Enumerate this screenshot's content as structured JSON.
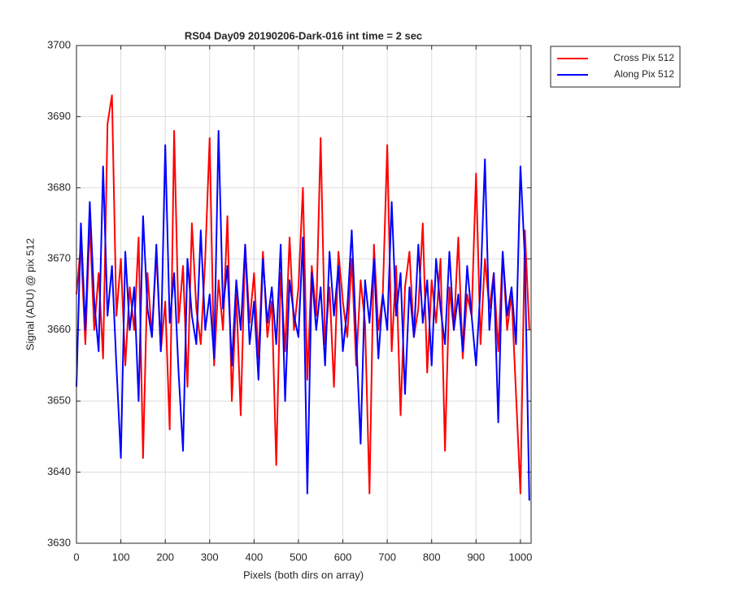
{
  "chart_data": {
    "type": "line",
    "title": "RS04 Day09 20190206-Dark-016 int time = 2 sec",
    "xlabel": "Pixels (both dirs on array)",
    "ylabel": "Signal (ADU) @ pix 512",
    "x": [
      0,
      10,
      20,
      30,
      40,
      50,
      60,
      70,
      80,
      90,
      100,
      110,
      120,
      130,
      140,
      150,
      160,
      170,
      180,
      190,
      200,
      210,
      220,
      230,
      240,
      250,
      260,
      270,
      280,
      290,
      300,
      310,
      320,
      330,
      340,
      350,
      360,
      370,
      380,
      390,
      400,
      410,
      420,
      430,
      440,
      450,
      460,
      470,
      480,
      490,
      500,
      510,
      520,
      530,
      540,
      550,
      560,
      570,
      580,
      590,
      600,
      610,
      620,
      630,
      640,
      650,
      660,
      670,
      680,
      690,
      700,
      710,
      720,
      730,
      740,
      750,
      760,
      770,
      780,
      790,
      800,
      810,
      820,
      830,
      840,
      850,
      860,
      870,
      880,
      890,
      900,
      910,
      920,
      930,
      940,
      950,
      960,
      970,
      980,
      990,
      1000,
      1010,
      1020
    ],
    "series": [
      {
        "name": "Cross Pix 512",
        "color": "#ff0000",
        "values": [
          3665,
          3672,
          3658,
          3675,
          3660,
          3668,
          3656,
          3689,
          3693,
          3662,
          3670,
          3655,
          3666,
          3660,
          3673,
          3642,
          3668,
          3659,
          3671,
          3657,
          3664,
          3646,
          3688,
          3661,
          3669,
          3652,
          3675,
          3663,
          3658,
          3670,
          3687,
          3655,
          3667,
          3660,
          3676,
          3650,
          3665,
          3648,
          3672,
          3661,
          3668,
          3656,
          3671,
          3659,
          3664,
          3641,
          3668,
          3657,
          3673,
          3660,
          3666,
          3680,
          3653,
          3669,
          3662,
          3687,
          3658,
          3666,
          3652,
          3671,
          3664,
          3659,
          3670,
          3655,
          3667,
          3661,
          3637,
          3672,
          3660,
          3665,
          3686,
          3657,
          3669,
          3648,
          3666,
          3671,
          3659,
          3663,
          3675,
          3654,
          3667,
          3661,
          3670,
          3643,
          3666,
          3660,
          3673,
          3656,
          3665,
          3662,
          3682,
          3658,
          3670,
          3663,
          3668,
          3657,
          3671,
          3660,
          3665,
          3651,
          3637,
          3674,
          3660
        ]
      },
      {
        "name": "Along Pix 512",
        "color": "#0000ff",
        "values": [
          3652,
          3675,
          3660,
          3678,
          3664,
          3657,
          3683,
          3662,
          3669,
          3655,
          3642,
          3671,
          3660,
          3666,
          3650,
          3676,
          3663,
          3659,
          3672,
          3657,
          3686,
          3661,
          3668,
          3654,
          3643,
          3670,
          3662,
          3658,
          3674,
          3660,
          3665,
          3656,
          3688,
          3663,
          3669,
          3655,
          3667,
          3660,
          3672,
          3658,
          3664,
          3653,
          3670,
          3661,
          3666,
          3658,
          3672,
          3650,
          3667,
          3662,
          3659,
          3673,
          3637,
          3668,
          3660,
          3666,
          3655,
          3671,
          3662,
          3669,
          3657,
          3663,
          3674,
          3659,
          3644,
          3667,
          3661,
          3670,
          3656,
          3665,
          3660,
          3678,
          3662,
          3668,
          3651,
          3666,
          3659,
          3672,
          3661,
          3667,
          3655,
          3670,
          3663,
          3658,
          3671,
          3660,
          3665,
          3657,
          3669,
          3662,
          3655,
          3666,
          3684,
          3660,
          3668,
          3647,
          3671,
          3662,
          3666,
          3658,
          3683,
          3670,
          3636
        ]
      }
    ],
    "xlim": [
      0,
      1024
    ],
    "xticks": [
      0,
      100,
      200,
      300,
      400,
      500,
      600,
      700,
      800,
      900,
      1000
    ],
    "ylim": [
      3630,
      3700
    ],
    "yticks": [
      3630,
      3640,
      3650,
      3660,
      3670,
      3680,
      3690,
      3700
    ],
    "grid": true,
    "legend": "northeastoutside"
  }
}
